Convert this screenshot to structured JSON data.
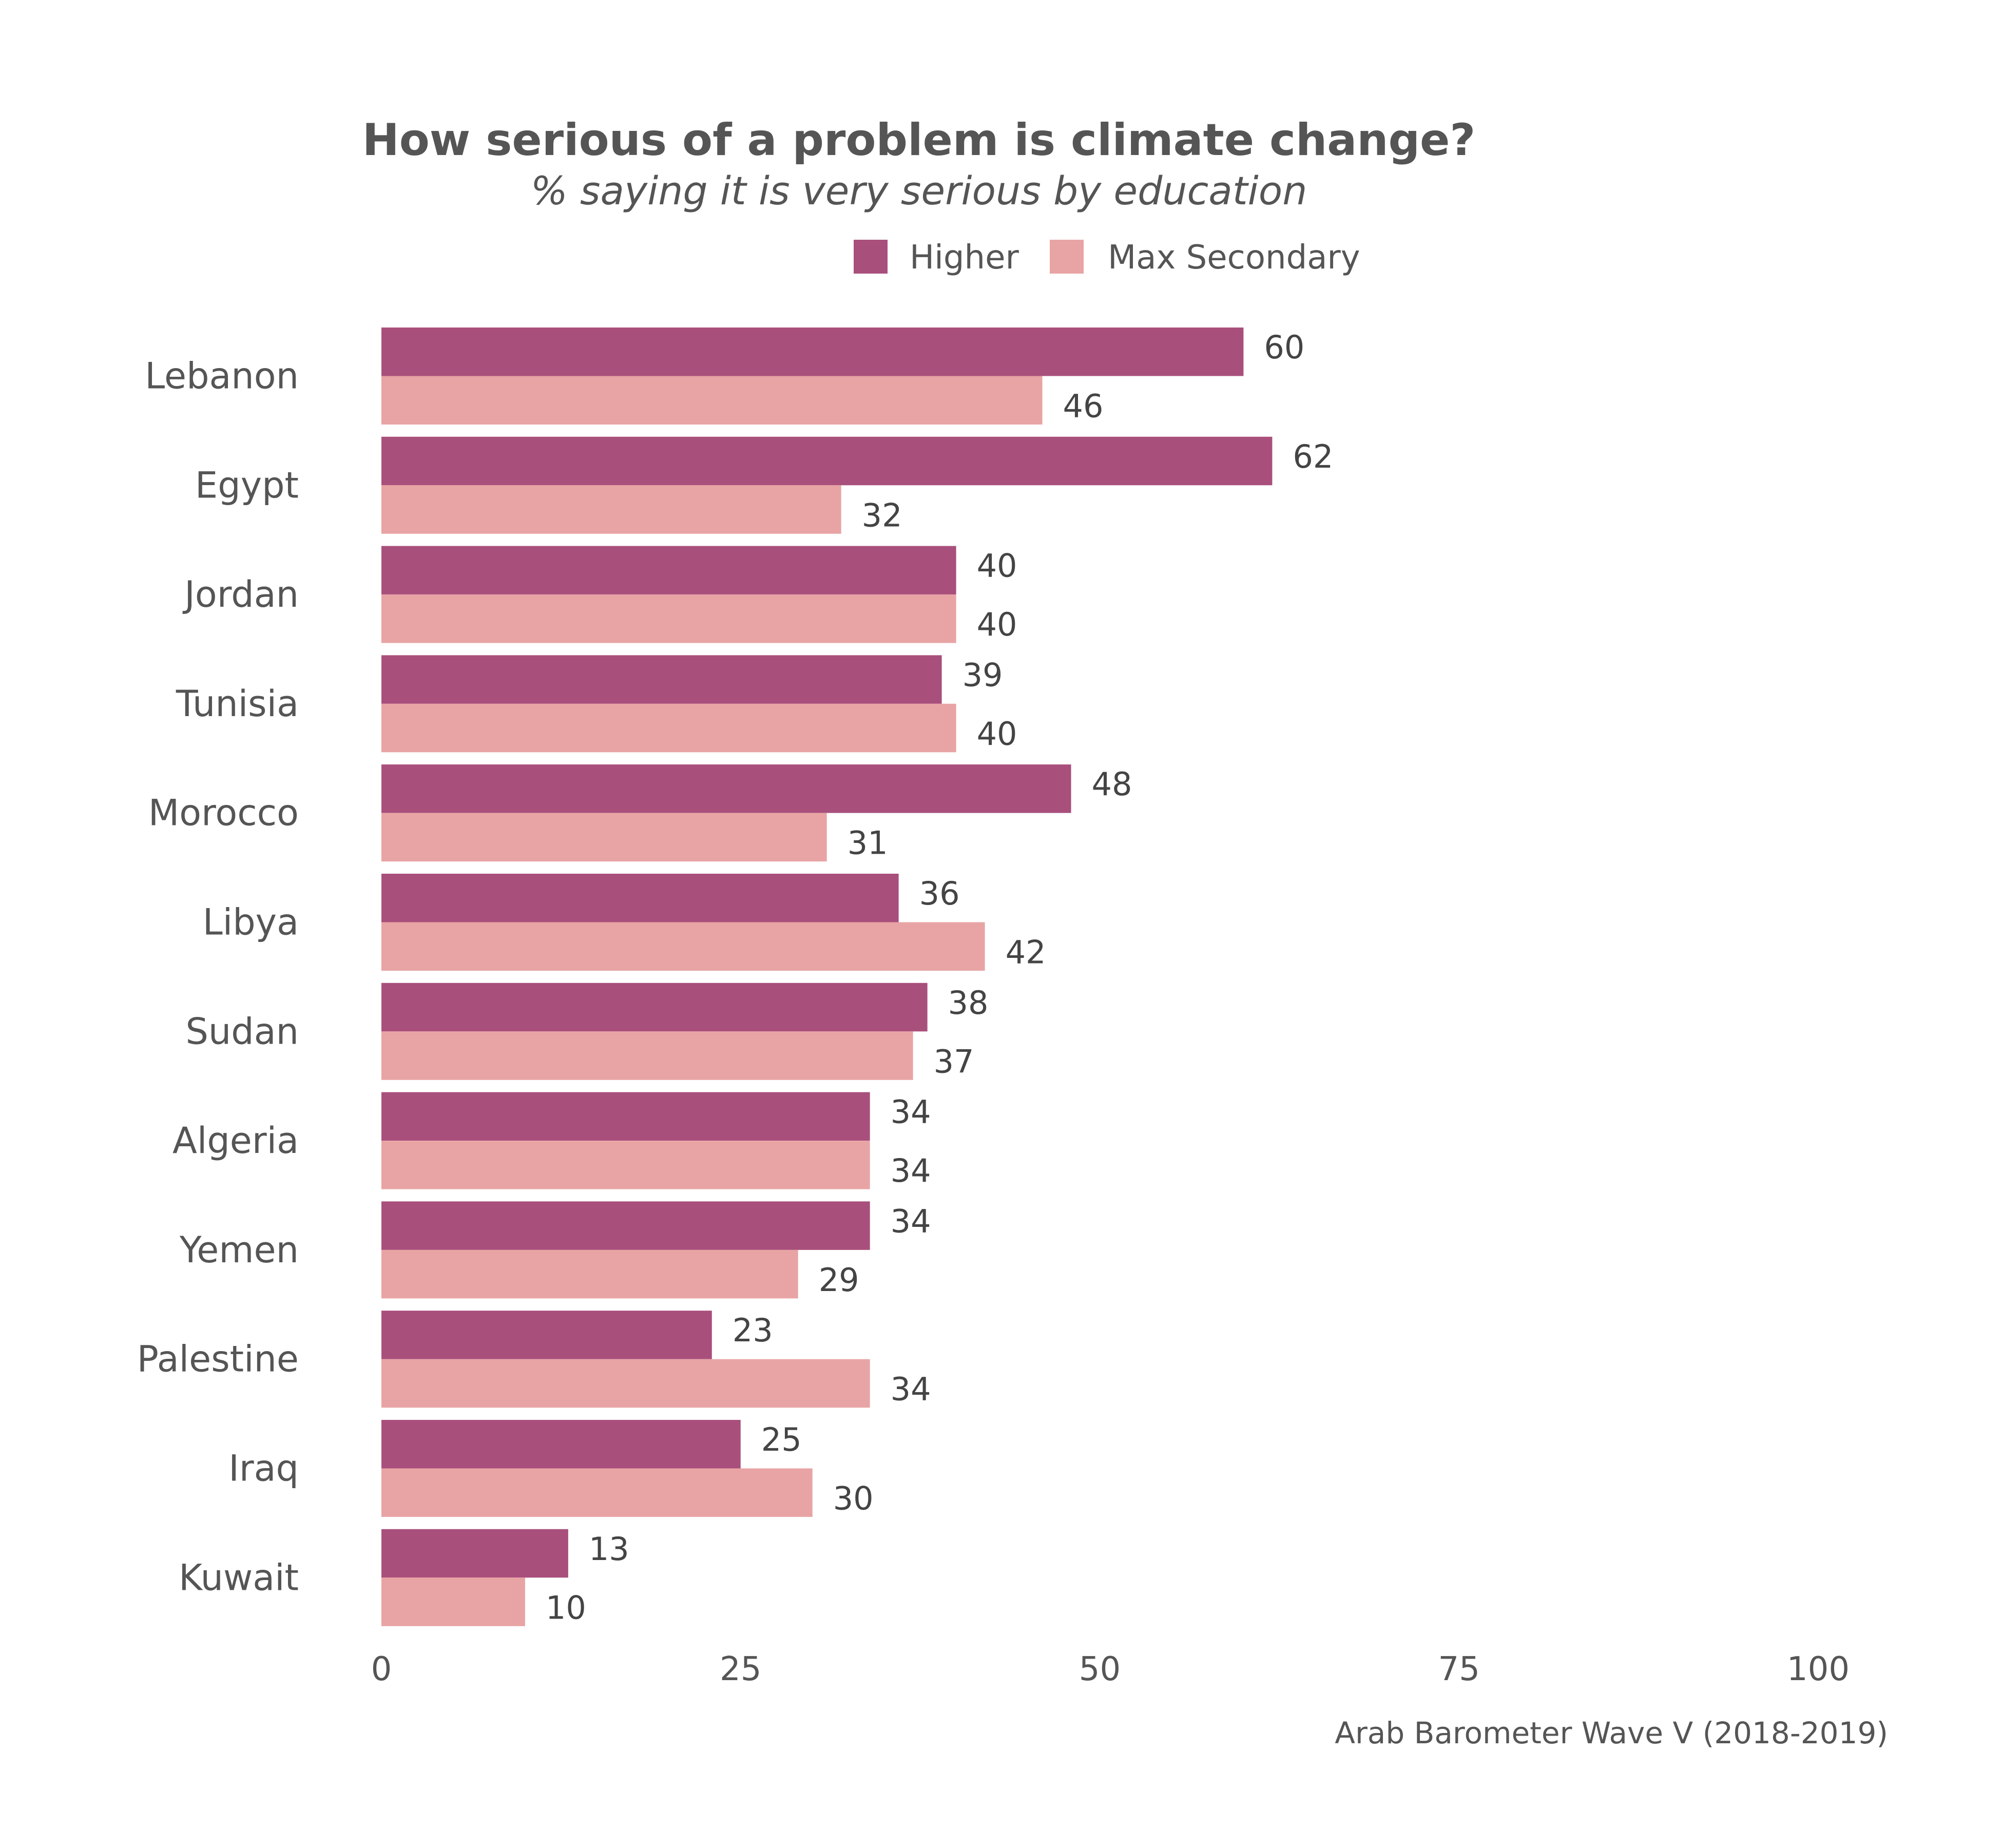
{
  "chart_data": {
    "type": "bar",
    "orientation": "horizontal",
    "title": "How serious of a problem is climate change?",
    "subtitle": "% saying it is very serious by education",
    "caption": "Arab Barometer Wave V (2018-2019)",
    "categories": [
      "Lebanon",
      "Egypt",
      "Jordan",
      "Tunisia",
      "Morocco",
      "Libya",
      "Sudan",
      "Algeria",
      "Yemen",
      "Palestine",
      "Iraq",
      "Kuwait"
    ],
    "series": [
      {
        "name": "Higher",
        "color": "#a94f7c",
        "values": [
          60,
          62,
          40,
          39,
          48,
          36,
          38,
          34,
          34,
          23,
          25,
          13
        ]
      },
      {
        "name": "Max Secondary",
        "color": "#e8a4a4",
        "values": [
          46,
          32,
          40,
          40,
          31,
          42,
          37,
          34,
          29,
          34,
          30,
          10
        ]
      }
    ],
    "xlim": [
      0,
      100
    ],
    "xticks": [
      "0",
      "25",
      "50",
      "75",
      "100"
    ],
    "grid": false,
    "legend_position": "top"
  }
}
